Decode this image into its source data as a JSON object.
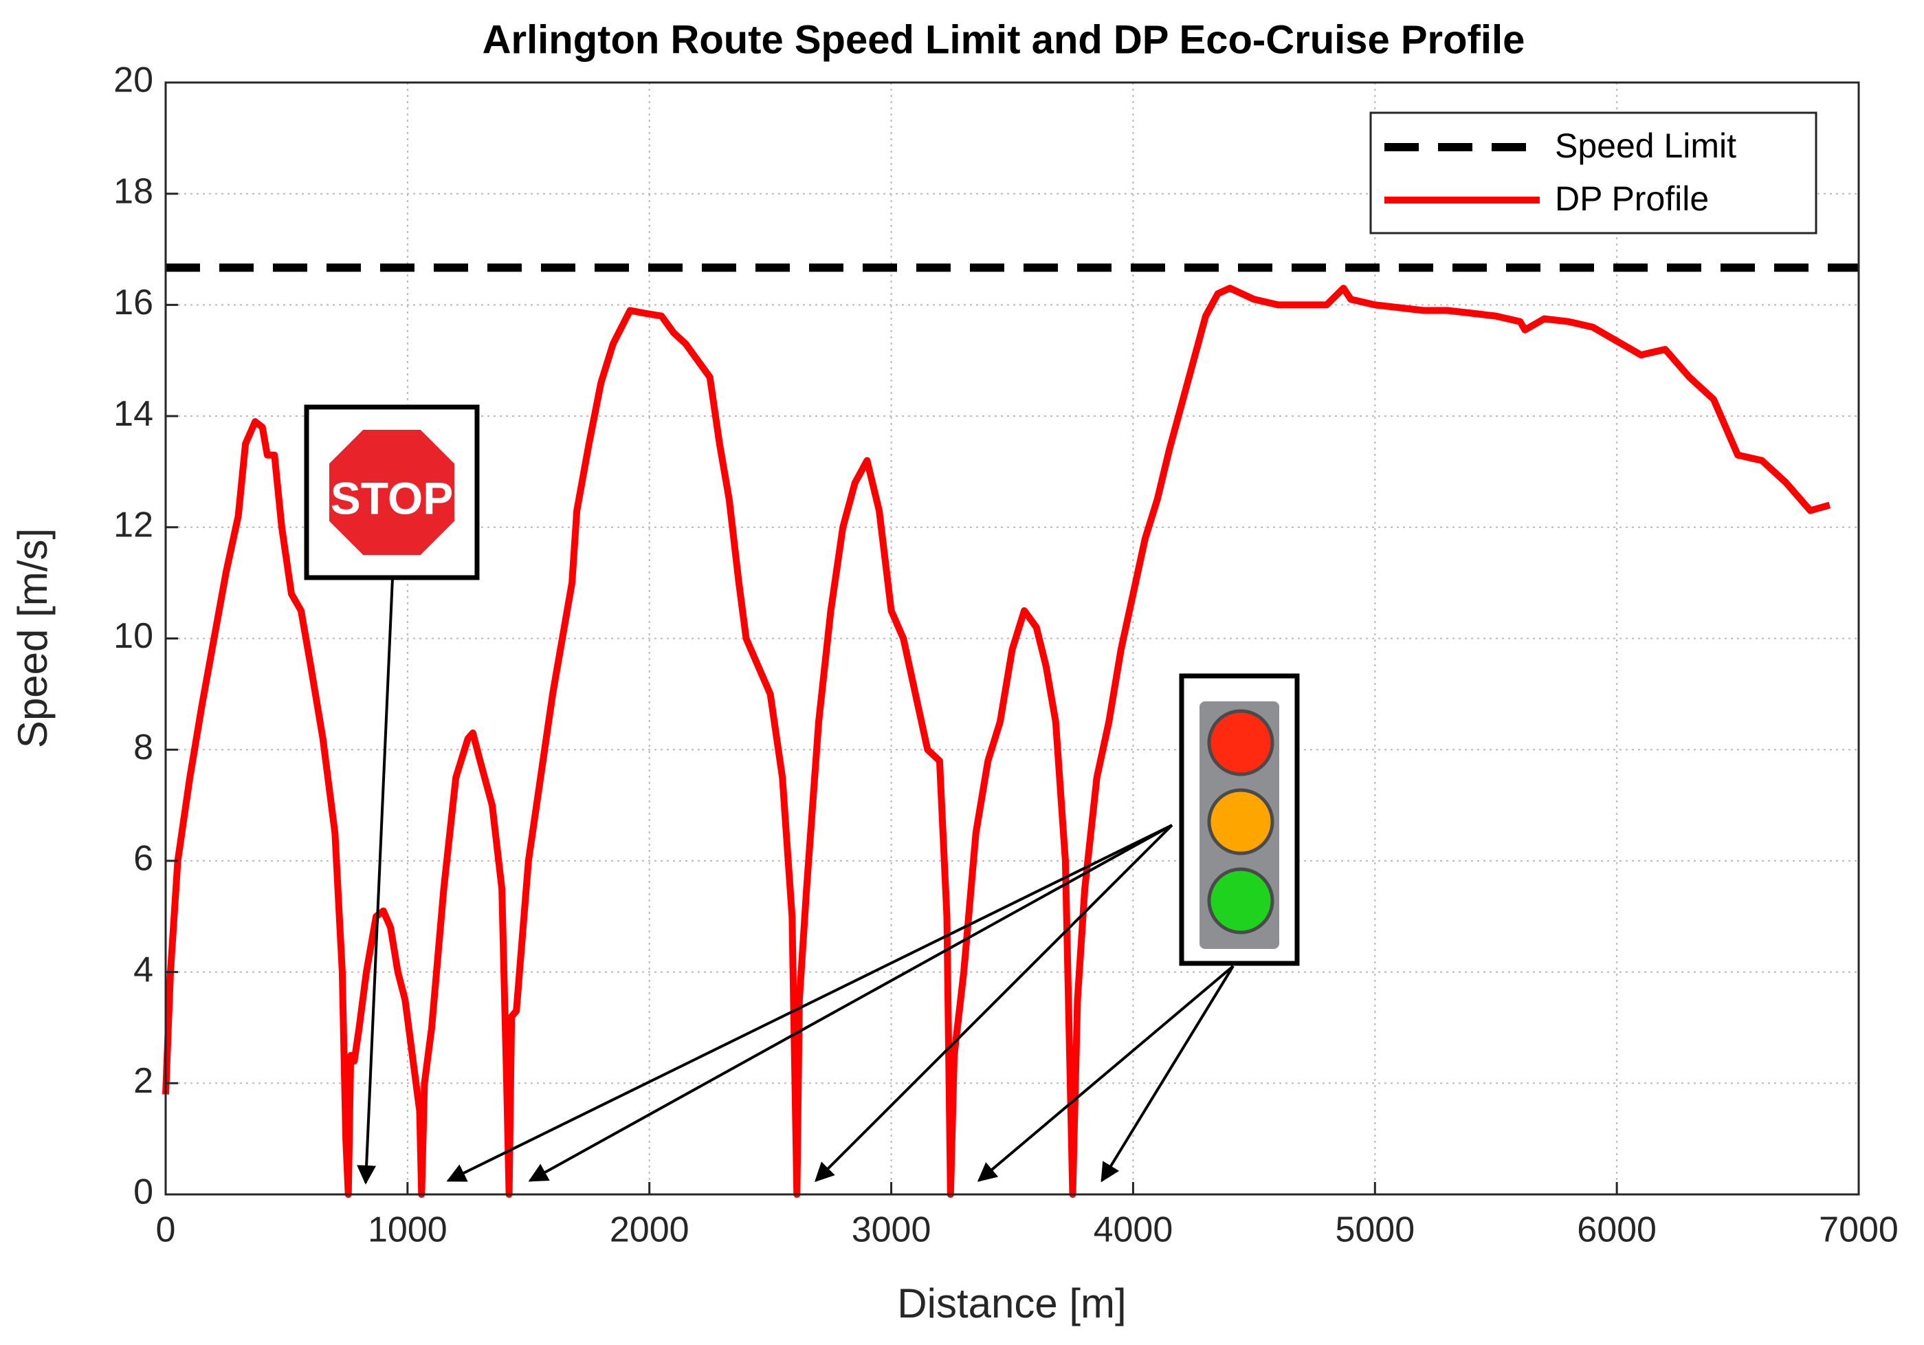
{
  "chart_data": {
    "type": "line",
    "title": "Arlington Route Speed Limit and DP Eco-Cruise Profile",
    "x_label": "Distance [m]",
    "y_label": "Speed [m/s]",
    "xlim": [
      0,
      7000
    ],
    "ylim": [
      0,
      20
    ],
    "xticks": [
      0,
      1000,
      2000,
      3000,
      4000,
      5000,
      6000,
      7000
    ],
    "yticks": [
      0,
      2,
      4,
      6,
      8,
      10,
      12,
      14,
      16,
      18,
      20
    ],
    "grid": true,
    "legend_position": "upper right",
    "series": [
      {
        "name": "Speed Limit",
        "color": "#000000",
        "style": "dashed",
        "x": [
          0,
          7000
        ],
        "values": [
          16.67,
          16.67
        ]
      },
      {
        "name": "DP Profile",
        "color": "#ff0000",
        "style": "solid",
        "x": [
          0,
          20,
          50,
          100,
          150,
          200,
          250,
          300,
          330,
          370,
          400,
          420,
          450,
          480,
          520,
          560,
          600,
          650,
          700,
          730,
          745,
          755,
          765,
          780,
          800,
          830,
          870,
          900,
          930,
          960,
          990,
          1020,
          1050,
          1058,
          1070,
          1100,
          1150,
          1200,
          1250,
          1270,
          1300,
          1350,
          1390,
          1410,
          1420,
          1430,
          1450,
          1500,
          1600,
          1680,
          1700,
          1750,
          1800,
          1850,
          1920,
          1980,
          2050,
          2100,
          2150,
          2200,
          2250,
          2290,
          2330,
          2370,
          2400,
          2450,
          2500,
          2550,
          2590,
          2610,
          2620,
          2650,
          2700,
          2750,
          2800,
          2850,
          2900,
          2950,
          3000,
          3050,
          3100,
          3150,
          3200,
          3230,
          3245,
          3260,
          3300,
          3350,
          3400,
          3450,
          3500,
          3550,
          3600,
          3640,
          3680,
          3720,
          3750,
          3770,
          3800,
          3850,
          3900,
          3950,
          4000,
          4050,
          4100,
          4150,
          4200,
          4250,
          4300,
          4350,
          4400,
          4500,
          4600,
          4700,
          4800,
          4870,
          4900,
          5000,
          5100,
          5200,
          5300,
          5400,
          5500,
          5600,
          5620,
          5700,
          5800,
          5900,
          6000,
          6100,
          6200,
          6300,
          6400,
          6450,
          6500,
          6600,
          6700,
          6800,
          6880
        ],
        "values": [
          1.8,
          4,
          6,
          7.5,
          8.8,
          10,
          11.2,
          12.2,
          13.5,
          13.9,
          13.8,
          13.3,
          13.3,
          12,
          10.8,
          10.5,
          9.5,
          8.2,
          6.5,
          4,
          1,
          0,
          2.5,
          2.4,
          3,
          4,
          5,
          5.1,
          4.8,
          4,
          3.5,
          2.5,
          1.5,
          0,
          2,
          3,
          5.5,
          7.5,
          8.2,
          8.3,
          7.8,
          7,
          5.5,
          2,
          0,
          3.2,
          3.3,
          6,
          9,
          11,
          12.3,
          13.5,
          14.6,
          15.3,
          15.9,
          15.85,
          15.8,
          15.5,
          15.3,
          15,
          14.7,
          13.5,
          12.5,
          11,
          10,
          9.5,
          9,
          7.5,
          5,
          0,
          3.5,
          5.5,
          8.5,
          10.5,
          12,
          12.8,
          13.2,
          12.3,
          10.5,
          10,
          9,
          8,
          7.8,
          5,
          0,
          2.5,
          4,
          6.5,
          7.8,
          8.5,
          9.8,
          10.5,
          10.2,
          9.5,
          8.5,
          6,
          0,
          3.5,
          5.5,
          7.5,
          8.5,
          9.8,
          10.8,
          11.8,
          12.5,
          13.4,
          14.2,
          15,
          15.8,
          16.2,
          16.3,
          16.1,
          16,
          16,
          16,
          16.3,
          16.1,
          16,
          15.95,
          15.9,
          15.9,
          15.85,
          15.8,
          15.7,
          15.55,
          15.75,
          15.7,
          15.6,
          15.35,
          15.1,
          15.2,
          14.7,
          14.3,
          13.8,
          13.3,
          13.2,
          12.8,
          12.3,
          12.4
        ]
      }
    ]
  }
}
